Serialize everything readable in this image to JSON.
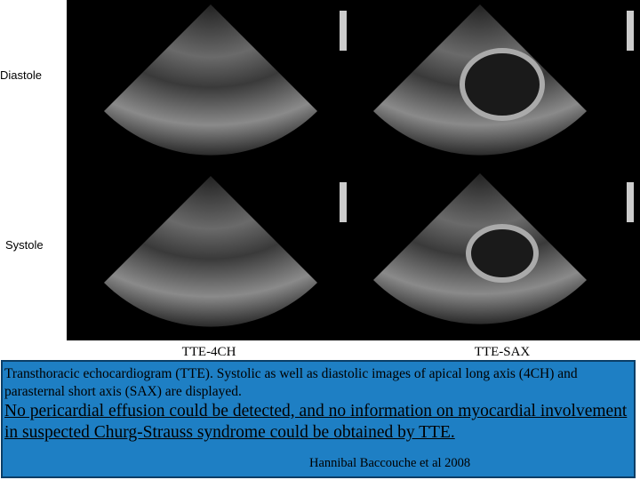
{
  "labels": {
    "diastole": "Diastole",
    "systole": "Systole"
  },
  "views": [
    "TTE-4CH",
    "TTE-SAX"
  ],
  "caption": {
    "intro": "Transthoracic echocardiogram (TTE). Systolic as well as diastolic images of apical long axis (4CH) and parasternal short axis (SAX) are displayed.",
    "finding": "No pericardial effusion could be detected, and no information on myocardial  involvement in suspected Churg-Strauss syndrome could be obtained by TTE.",
    "citation": "Hannibal Baccouche et al 2008"
  }
}
